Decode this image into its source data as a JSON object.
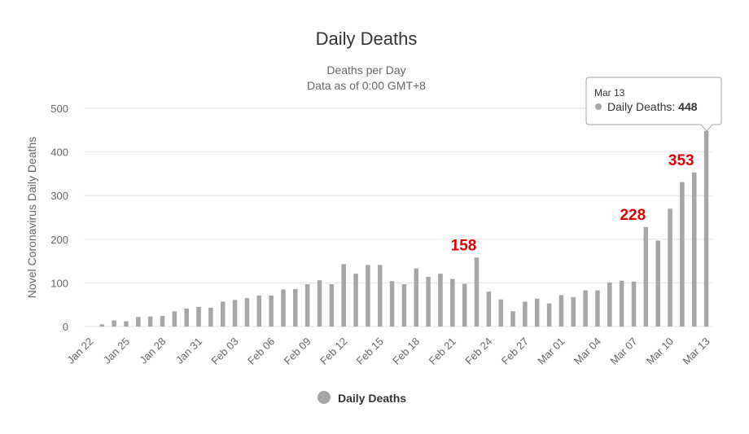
{
  "chart_data": {
    "type": "bar",
    "title": "Daily Deaths",
    "subtitle_lines": [
      "Deaths per Day",
      "Data as of 0:00 GMT+8"
    ],
    "xlabel": "",
    "ylabel": "Novel Coronavirus Daily Deaths",
    "ylim": [
      0,
      500
    ],
    "yticks": [
      0,
      100,
      200,
      300,
      400,
      500
    ],
    "grid": true,
    "legend_position": "bottom-center",
    "categories": [
      "Jan 22",
      "Jan 23",
      "Jan 24",
      "Jan 25",
      "Jan 26",
      "Jan 27",
      "Jan 28",
      "Jan 29",
      "Jan 30",
      "Jan 31",
      "Feb 01",
      "Feb 02",
      "Feb 03",
      "Feb 04",
      "Feb 05",
      "Feb 06",
      "Feb 07",
      "Feb 08",
      "Feb 09",
      "Feb 10",
      "Feb 11",
      "Feb 12",
      "Feb 13",
      "Feb 14",
      "Feb 15",
      "Feb 16",
      "Feb 17",
      "Feb 18",
      "Feb 19",
      "Feb 20",
      "Feb 21",
      "Feb 22",
      "Feb 23",
      "Feb 24",
      "Feb 25",
      "Feb 26",
      "Feb 27",
      "Feb 28",
      "Feb 29",
      "Mar 01",
      "Mar 02",
      "Mar 03",
      "Mar 04",
      "Mar 05",
      "Mar 06",
      "Mar 07",
      "Mar 08",
      "Mar 09",
      "Mar 10",
      "Mar 11",
      "Mar 12",
      "Mar 13"
    ],
    "xtick_labels": [
      "Jan 22",
      "Jan 25",
      "Jan 28",
      "Jan 31",
      "Feb 03",
      "Feb 06",
      "Feb 09",
      "Feb 12",
      "Feb 15",
      "Feb 18",
      "Feb 21",
      "Feb 24",
      "Feb 27",
      "Mar 01",
      "Mar 04",
      "Mar 07",
      "Mar 10",
      "Mar 13"
    ],
    "series": [
      {
        "name": "Daily Deaths",
        "color": "#a6a6a6",
        "values": [
          0,
          5,
          14,
          12,
          22,
          23,
          24,
          35,
          41,
          45,
          43,
          57,
          61,
          65,
          71,
          71,
          85,
          86,
          97,
          106,
          97,
          143,
          121,
          141,
          141,
          104,
          97,
          133,
          114,
          121,
          109,
          98,
          158,
          80,
          62,
          35,
          57,
          64,
          53,
          72,
          67,
          83,
          83,
          101,
          105,
          103,
          228,
          197,
          270,
          331,
          353,
          448
        ]
      }
    ],
    "annotations": [
      {
        "category": "Feb 23",
        "value": 158,
        "text": "158"
      },
      {
        "category": "Mar 08",
        "value": 228,
        "text": "228"
      },
      {
        "category": "Mar 12",
        "value": 353,
        "text": "353"
      }
    ],
    "tooltip": {
      "category": "Mar 13",
      "date": "Mar 13",
      "series": "Daily Deaths",
      "value": "448"
    },
    "colors": {
      "bar": "#a6a6a6",
      "annotation": "#e00000",
      "grid": "#e6e6e6"
    }
  }
}
